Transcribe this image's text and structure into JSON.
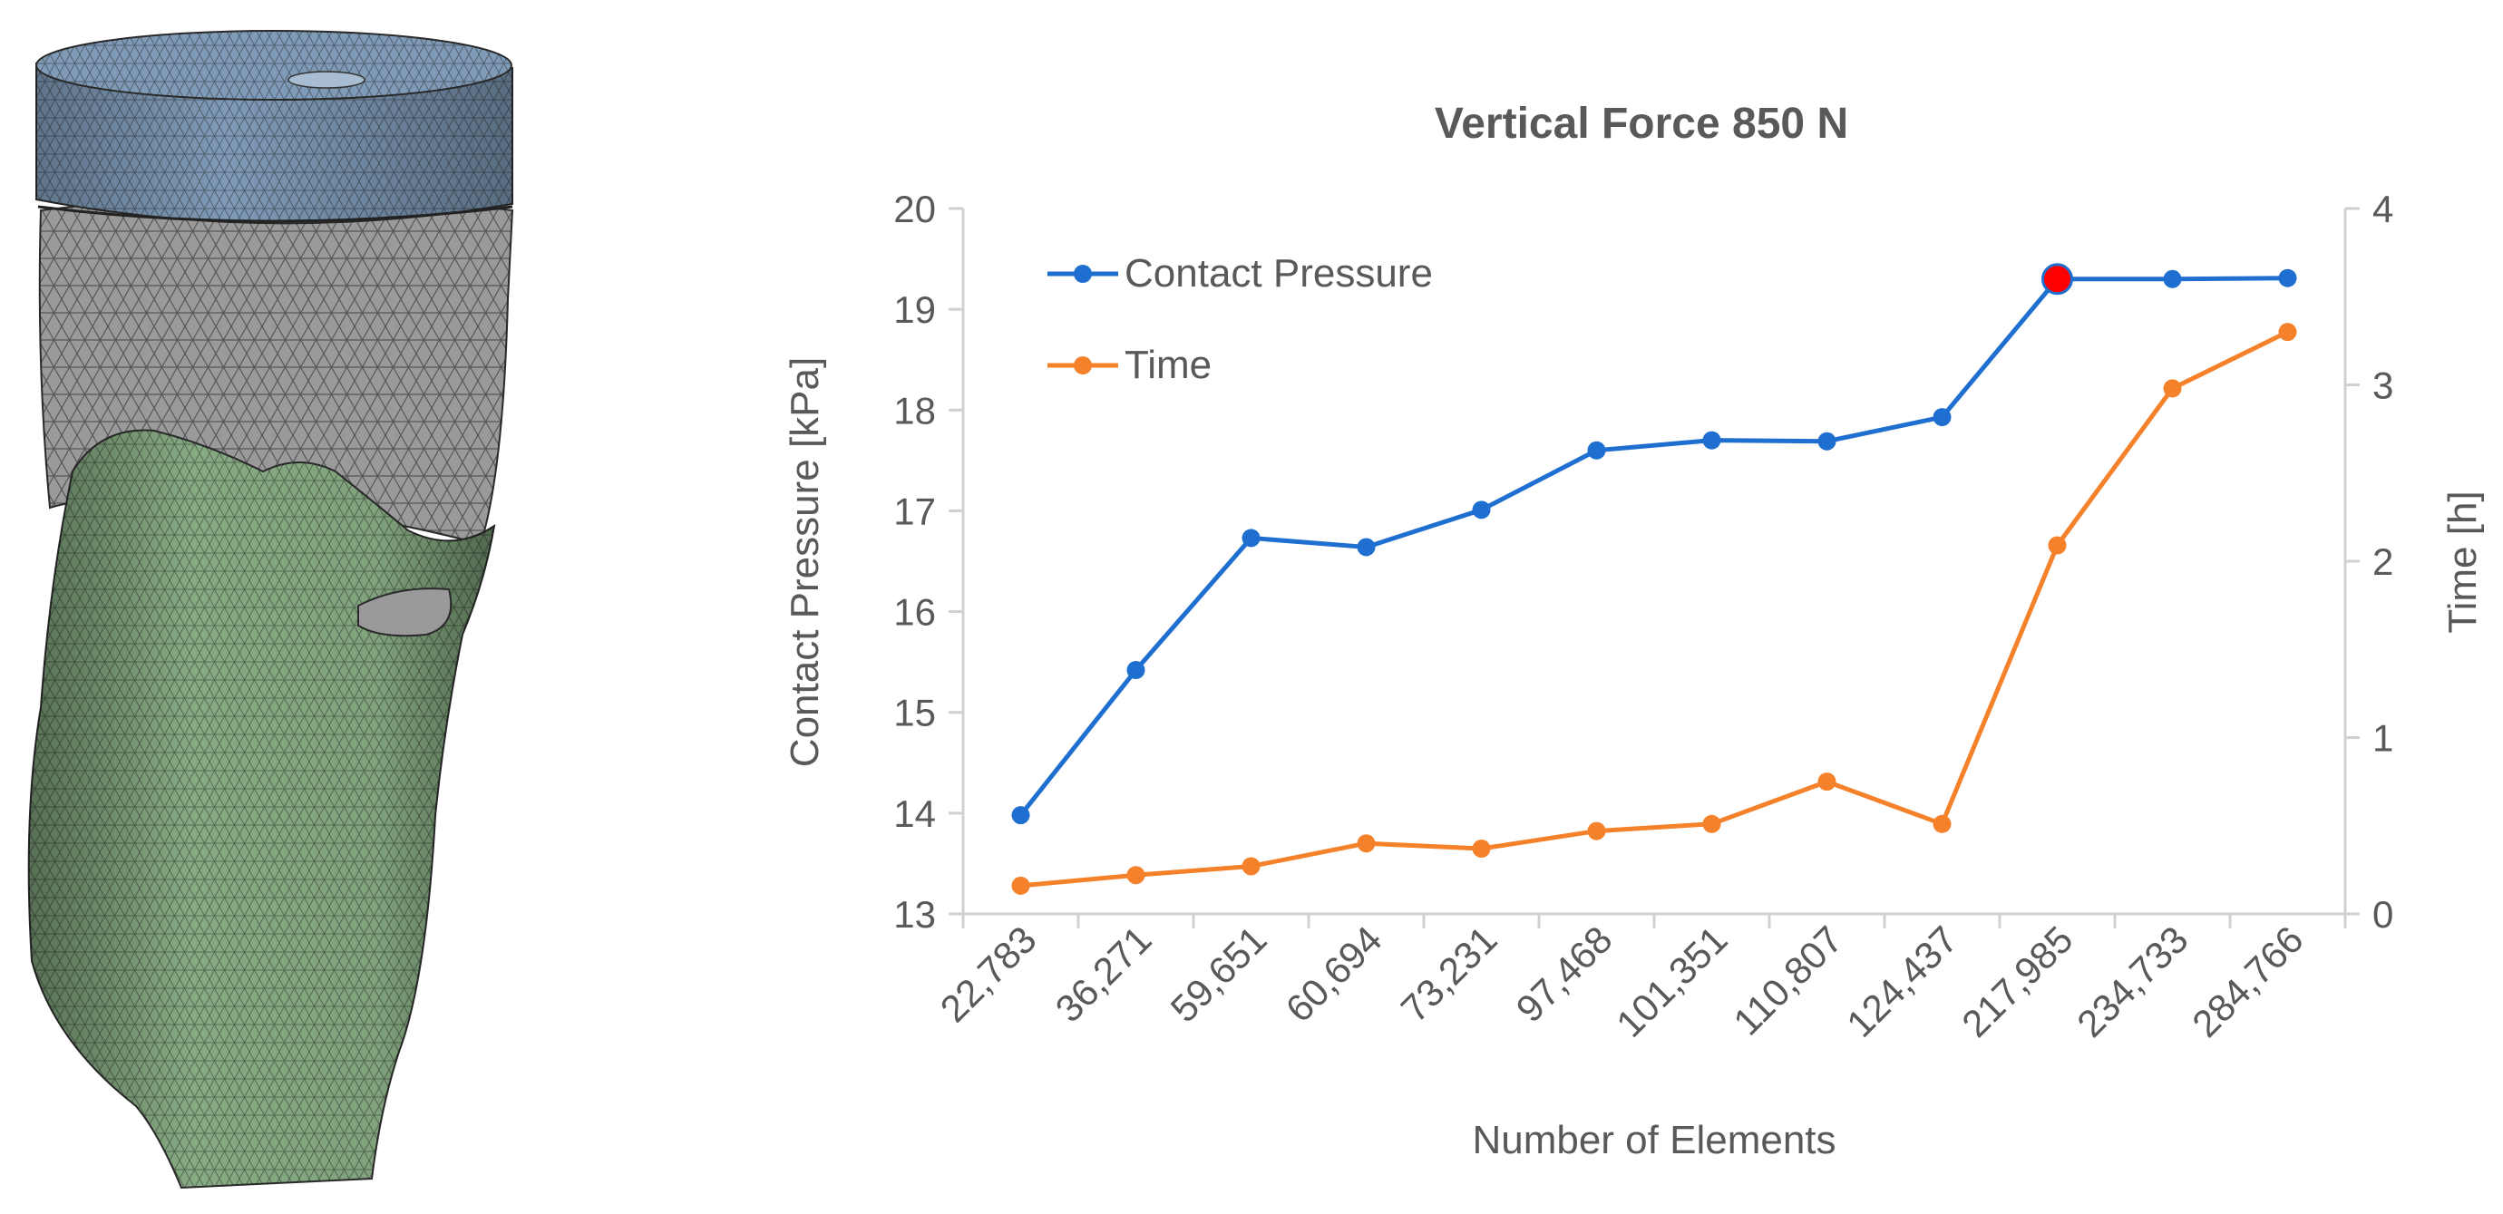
{
  "chart_data": {
    "type": "line",
    "title": "Vertical Force 850 N",
    "xlabel": "Number of Elements",
    "ylabel": "Contact Pressure [kPa]",
    "y2label": "Time [h]",
    "categories": [
      "22,783",
      "36,271",
      "59,651",
      "60,694",
      "73,231",
      "97,468",
      "101,351",
      "110,807",
      "124,437",
      "217,985",
      "234,733",
      "284,766"
    ],
    "ylim": [
      13,
      20
    ],
    "yticks": [
      13,
      14,
      15,
      16,
      17,
      18,
      19,
      20
    ],
    "y2lim": [
      0,
      4
    ],
    "y2ticks": [
      0,
      1,
      2,
      3,
      4
    ],
    "grid": false,
    "legend_position": "top-left",
    "series": [
      {
        "name": "Contact Pressure",
        "axis": "left",
        "color": "#1f6fd1",
        "values": [
          13.98,
          15.42,
          16.73,
          16.64,
          17.01,
          17.6,
          17.7,
          17.69,
          17.93,
          19.3,
          19.3,
          19.31
        ],
        "highlight_index": 9,
        "highlight_color": "#ff0000"
      },
      {
        "name": "Time",
        "axis": "right",
        "color": "#f5822a",
        "values": [
          0.16,
          0.22,
          0.27,
          0.4,
          0.37,
          0.47,
          0.51,
          0.75,
          0.51,
          2.09,
          2.98,
          3.3
        ]
      }
    ]
  },
  "mesh_image": {
    "top_cap_color": "#7f9bb8",
    "liner_color": "#9a9a9a",
    "residual_limb_color": "#86ab82",
    "mesh_line_color": "#2a2a2a"
  }
}
